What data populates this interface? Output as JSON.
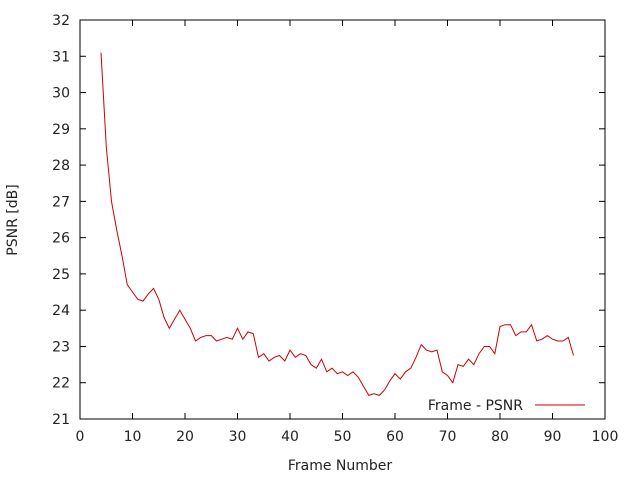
{
  "chart_data": {
    "type": "line",
    "title": "",
    "xlabel": "Frame Number",
    "ylabel": "PSNR [dB]",
    "xlim": [
      0,
      100
    ],
    "ylim": [
      21,
      32
    ],
    "xticks": [
      "0",
      "10",
      "20",
      "30",
      "40",
      "50",
      "60",
      "70",
      "80",
      "90",
      "100"
    ],
    "yticks": [
      "21",
      "22",
      "23",
      "24",
      "25",
      "26",
      "27",
      "28",
      "29",
      "30",
      "31",
      "32"
    ],
    "grid": false,
    "legend_position": "bottom-right",
    "series": [
      {
        "name": "Frame - PSNR",
        "color": "#cc0000",
        "x": [
          4,
          5,
          6,
          7,
          8,
          9,
          10,
          11,
          12,
          13,
          14,
          15,
          16,
          17,
          18,
          19,
          20,
          21,
          22,
          23,
          24,
          25,
          26,
          27,
          28,
          29,
          30,
          31,
          32,
          33,
          34,
          35,
          36,
          37,
          38,
          39,
          40,
          41,
          42,
          43,
          44,
          45,
          46,
          47,
          48,
          49,
          50,
          51,
          52,
          53,
          54,
          55,
          56,
          57,
          58,
          59,
          60,
          61,
          62,
          63,
          64,
          65,
          66,
          67,
          68,
          69,
          70,
          71,
          72,
          73,
          74,
          75,
          76,
          77,
          78,
          79,
          80,
          81,
          82,
          83,
          84,
          85,
          86,
          87,
          88,
          89,
          90,
          91,
          92,
          93,
          94
        ],
        "y": [
          31.1,
          28.5,
          27.0,
          26.2,
          25.5,
          24.7,
          24.5,
          24.3,
          24.25,
          24.45,
          24.6,
          24.3,
          23.8,
          23.5,
          23.75,
          24.0,
          23.75,
          23.5,
          23.15,
          23.25,
          23.3,
          23.3,
          23.15,
          23.2,
          23.25,
          23.2,
          23.5,
          23.2,
          23.4,
          23.35,
          22.7,
          22.8,
          22.6,
          22.7,
          22.75,
          22.6,
          22.9,
          22.7,
          22.8,
          22.75,
          22.5,
          22.4,
          22.65,
          22.3,
          22.4,
          22.25,
          22.3,
          22.2,
          22.3,
          22.15,
          21.9,
          21.65,
          21.7,
          21.65,
          21.8,
          22.05,
          22.25,
          22.1,
          22.3,
          22.4,
          22.7,
          23.05,
          22.9,
          22.85,
          22.9,
          22.3,
          22.2,
          22.0,
          22.5,
          22.45,
          22.65,
          22.5,
          22.8,
          23.0,
          23.0,
          22.8,
          23.55,
          23.6,
          23.6,
          23.3,
          23.4,
          23.4,
          23.6,
          23.15,
          23.2,
          23.3,
          23.2,
          23.15,
          23.15,
          23.25,
          22.75
        ]
      }
    ]
  }
}
